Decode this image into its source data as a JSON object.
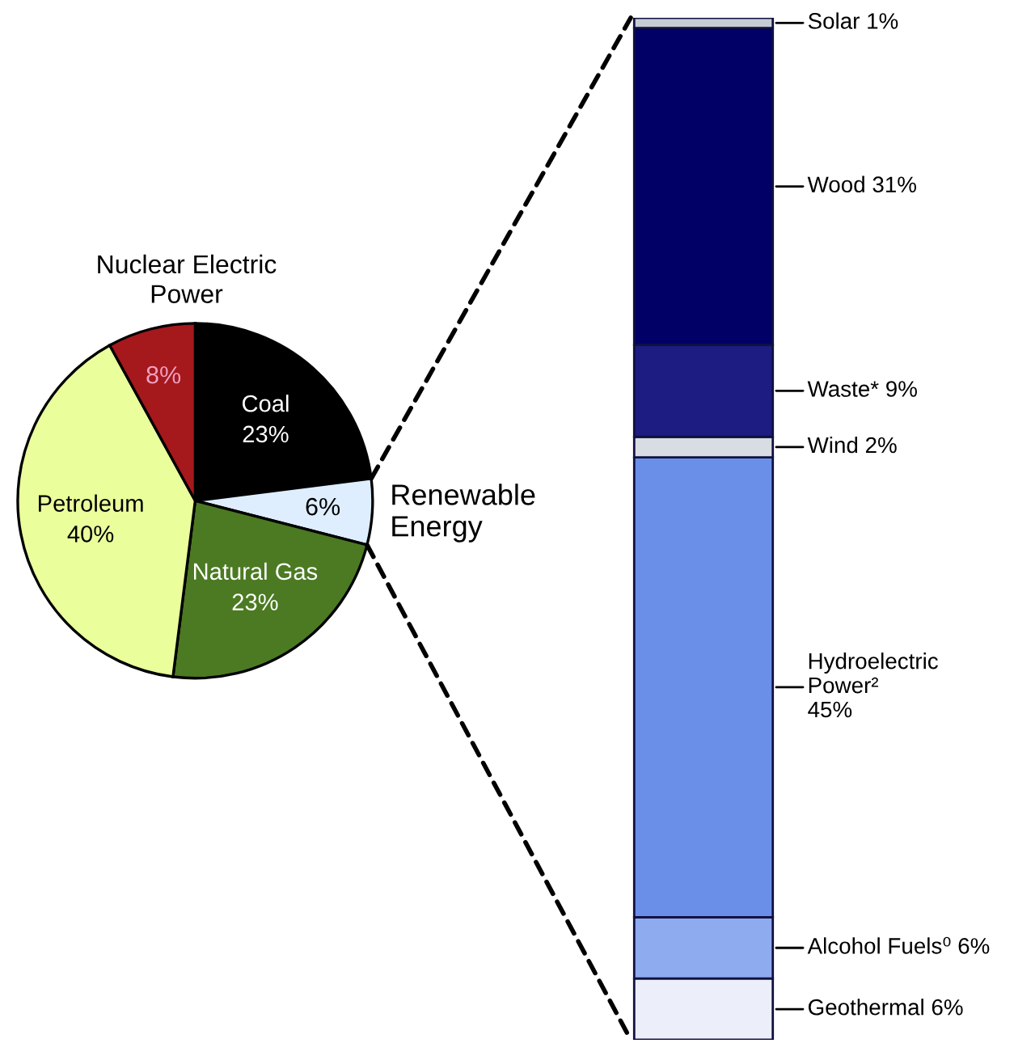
{
  "chart_data": [
    {
      "type": "pie",
      "categories": [
        "Coal",
        "Renewable Energy",
        "Natural Gas",
        "Petroleum",
        "Nuclear Electric Power"
      ],
      "values": [
        23,
        6,
        23,
        40,
        8
      ],
      "colors": [
        "#000000",
        "#deeeff",
        "#4b7a22",
        "#eaff9c",
        "#a5181c"
      ],
      "value_labels": [
        "23%",
        "6%",
        "23%",
        "40%",
        "8%"
      ]
    },
    {
      "type": "bar",
      "stacked": true,
      "categories": [
        null
      ],
      "series": [
        {
          "name": "Geothermal",
          "color": "#eceffa",
          "values": [
            6
          ],
          "value_labels": [
            "6%"
          ]
        },
        {
          "name": "Alcohol Fuels⁰",
          "color": "#8fabf0",
          "values": [
            6
          ],
          "value_labels": [
            "6%"
          ]
        },
        {
          "name": "Hydroelectric Power²",
          "color": "#6a8fe8",
          "values": [
            45
          ],
          "value_labels": [
            "45%"
          ]
        },
        {
          "name": "Wind",
          "color": "#d8dde4",
          "values": [
            2
          ],
          "value_labels": [
            "2%"
          ]
        },
        {
          "name": "Waste*",
          "color": "#1c1c82",
          "values": [
            9
          ],
          "value_labels": [
            "9%"
          ]
        },
        {
          "name": "Wood",
          "color": "#000066",
          "values": [
            31
          ],
          "value_labels": [
            "31%"
          ]
        },
        {
          "name": "Solar",
          "color": "#c5ccd4",
          "values": [
            1
          ],
          "value_labels": [
            "1%"
          ]
        }
      ]
    }
  ]
}
